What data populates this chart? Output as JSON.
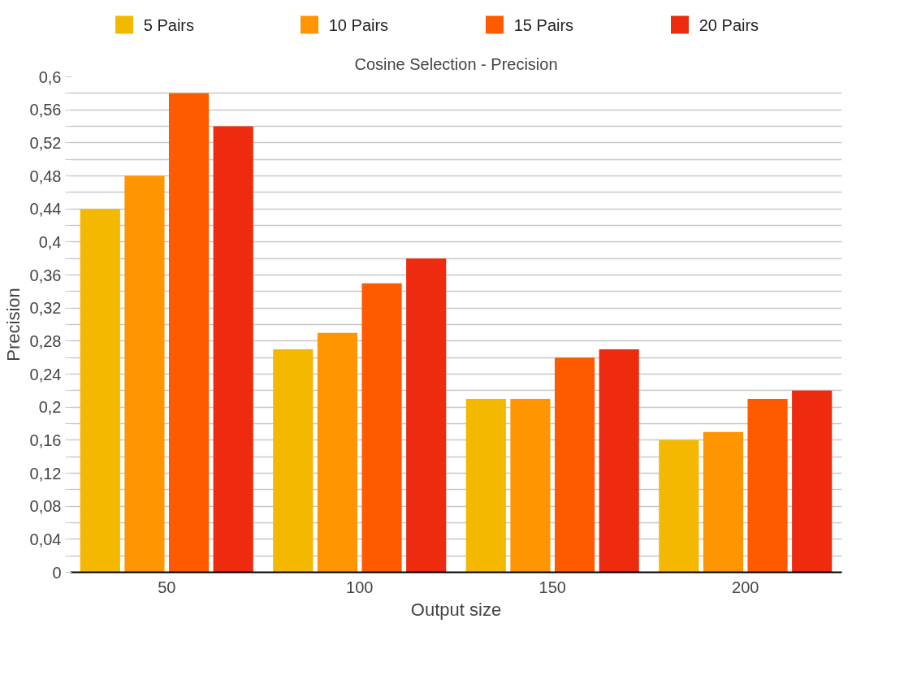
{
  "chart_data": {
    "type": "bar",
    "title": "Cosine Selection - Precision",
    "xlabel": "Output size",
    "ylabel": "Precision",
    "categories": [
      "50",
      "100",
      "150",
      "200"
    ],
    "series": [
      {
        "name": "5 Pairs",
        "color": "#f5b800",
        "values": [
          0.44,
          0.27,
          0.21,
          0.16
        ]
      },
      {
        "name": "10 Pairs",
        "color": "#ff9500",
        "values": [
          0.48,
          0.29,
          0.21,
          0.17
        ]
      },
      {
        "name": "15 Pairs",
        "color": "#ff5a00",
        "values": [
          0.58,
          0.35,
          0.26,
          0.21
        ]
      },
      {
        "name": "20 Pairs",
        "color": "#ee2a0f",
        "values": [
          0.54,
          0.38,
          0.27,
          0.22
        ]
      }
    ],
    "ylim": [
      0,
      0.6
    ],
    "yticks": [
      {
        "value": 0,
        "label": "0"
      },
      {
        "value": 0.02,
        "label": null
      },
      {
        "value": 0.04,
        "label": "0,04"
      },
      {
        "value": 0.06,
        "label": null
      },
      {
        "value": 0.08,
        "label": "0,08"
      },
      {
        "value": 0.1,
        "label": null
      },
      {
        "value": 0.12,
        "label": "0,12"
      },
      {
        "value": 0.14,
        "label": null
      },
      {
        "value": 0.16,
        "label": "0,16"
      },
      {
        "value": 0.18,
        "label": null
      },
      {
        "value": 0.2,
        "label": "0,2"
      },
      {
        "value": 0.22,
        "label": null
      },
      {
        "value": 0.24,
        "label": "0,24"
      },
      {
        "value": 0.26,
        "label": null
      },
      {
        "value": 0.28,
        "label": "0,28"
      },
      {
        "value": 0.3,
        "label": null
      },
      {
        "value": 0.32,
        "label": "0,32"
      },
      {
        "value": 0.34,
        "label": null
      },
      {
        "value": 0.36,
        "label": "0,36"
      },
      {
        "value": 0.38,
        "label": null
      },
      {
        "value": 0.4,
        "label": "0,4"
      },
      {
        "value": 0.42,
        "label": null
      },
      {
        "value": 0.44,
        "label": "0,44"
      },
      {
        "value": 0.46,
        "label": null
      },
      {
        "value": 0.48,
        "label": "0,48"
      },
      {
        "value": 0.5,
        "label": null
      },
      {
        "value": 0.52,
        "label": "0,52"
      },
      {
        "value": 0.54,
        "label": null
      },
      {
        "value": 0.56,
        "label": "0,56"
      },
      {
        "value": 0.58,
        "label": null
      },
      {
        "value": 0.6,
        "label": "0,6"
      }
    ],
    "grid": "y",
    "legend": "top"
  }
}
